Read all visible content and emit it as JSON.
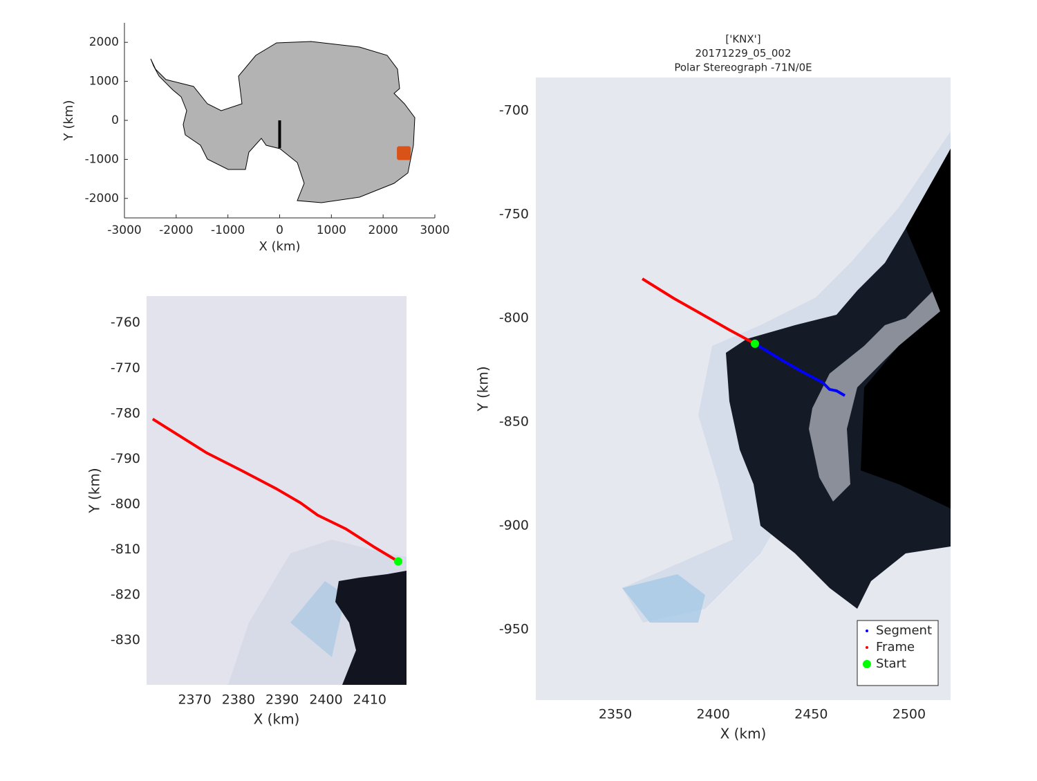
{
  "chart_data": [
    {
      "type": "line",
      "xlabel": "X (km)",
      "ylabel": "Y (km)",
      "xlim": [
        -3000,
        3000
      ],
      "ylim": [
        -2500,
        2500
      ],
      "xticks": [
        -3000,
        -2000,
        -1000,
        0,
        1000,
        2000,
        3000
      ],
      "yticks": [
        -2000,
        -1000,
        0,
        1000,
        2000
      ],
      "axis_lines": true,
      "series": [
        {
          "color": "#000000",
          "style": "line",
          "x": [
            0,
            0
          ],
          "values": [
            0,
            -710
          ]
        },
        {
          "color": "#d95319",
          "style": "square",
          "x": [
            2400
          ],
          "values": [
            -840
          ]
        }
      ]
    },
    {
      "type": "line",
      "xlabel": "X (km)",
      "ylabel": "Y (km)",
      "xlim": [
        2359,
        2418.4
      ],
      "ylim": [
        -839.8,
        -754.1
      ],
      "xticks": [
        2370,
        2380,
        2390,
        2400,
        2410
      ],
      "yticks": [
        -830,
        -820,
        -810,
        -800,
        -790,
        -780,
        -770,
        -760
      ],
      "axis_lines": false,
      "series": [
        {
          "color": "#ff0000",
          "style": "line",
          "x": [
            2360.4,
            2372.8,
            2380.8,
            2388.7,
            2394.2,
            2398.1,
            2404.5,
            2410.8,
            2416.5
          ],
          "values": [
            -781.2,
            -788.7,
            -792.6,
            -796.6,
            -799.7,
            -802.4,
            -805.4,
            -809.3,
            -812.6
          ]
        },
        {
          "color": "#00ff00",
          "style": "circle",
          "x": [
            2416.5
          ],
          "values": [
            -812.6
          ]
        }
      ]
    },
    {
      "type": "line",
      "title": [
        "['KNX']",
        "20171229_05_002",
        "Polar Stereograph -71N/0E"
      ],
      "xlabel": "X (km)",
      "ylabel": "Y (km)",
      "xlim": [
        2309.4,
        2521.2
      ],
      "ylim": [
        -984,
        -684
      ],
      "xticks": [
        2350,
        2400,
        2450,
        2500
      ],
      "yticks": [
        -950,
        -900,
        -850,
        -800,
        -750,
        -700
      ],
      "axis_lines": false,
      "legend": "lower right",
      "series": [
        {
          "name": "Segment",
          "color": "#0000ff",
          "style": "line",
          "x": [
            2421.3,
            2434.7,
            2445.3,
            2455.9,
            2459.4,
            2463.0,
            2467.2
          ],
          "values": [
            -812.3,
            -820,
            -825.7,
            -831,
            -834.3,
            -835,
            -837.3
          ]
        },
        {
          "name": "Frame",
          "color": "#ff0000",
          "style": "line",
          "x": [
            2363.8,
            2380,
            2395,
            2408,
            2421.3
          ],
          "values": [
            -781,
            -790.5,
            -798.5,
            -805.5,
            -812.3
          ]
        },
        {
          "name": "Start",
          "color": "#00ff00",
          "style": "circle",
          "x": [
            2421.3
          ],
          "values": [
            -812.3
          ]
        }
      ]
    }
  ]
}
